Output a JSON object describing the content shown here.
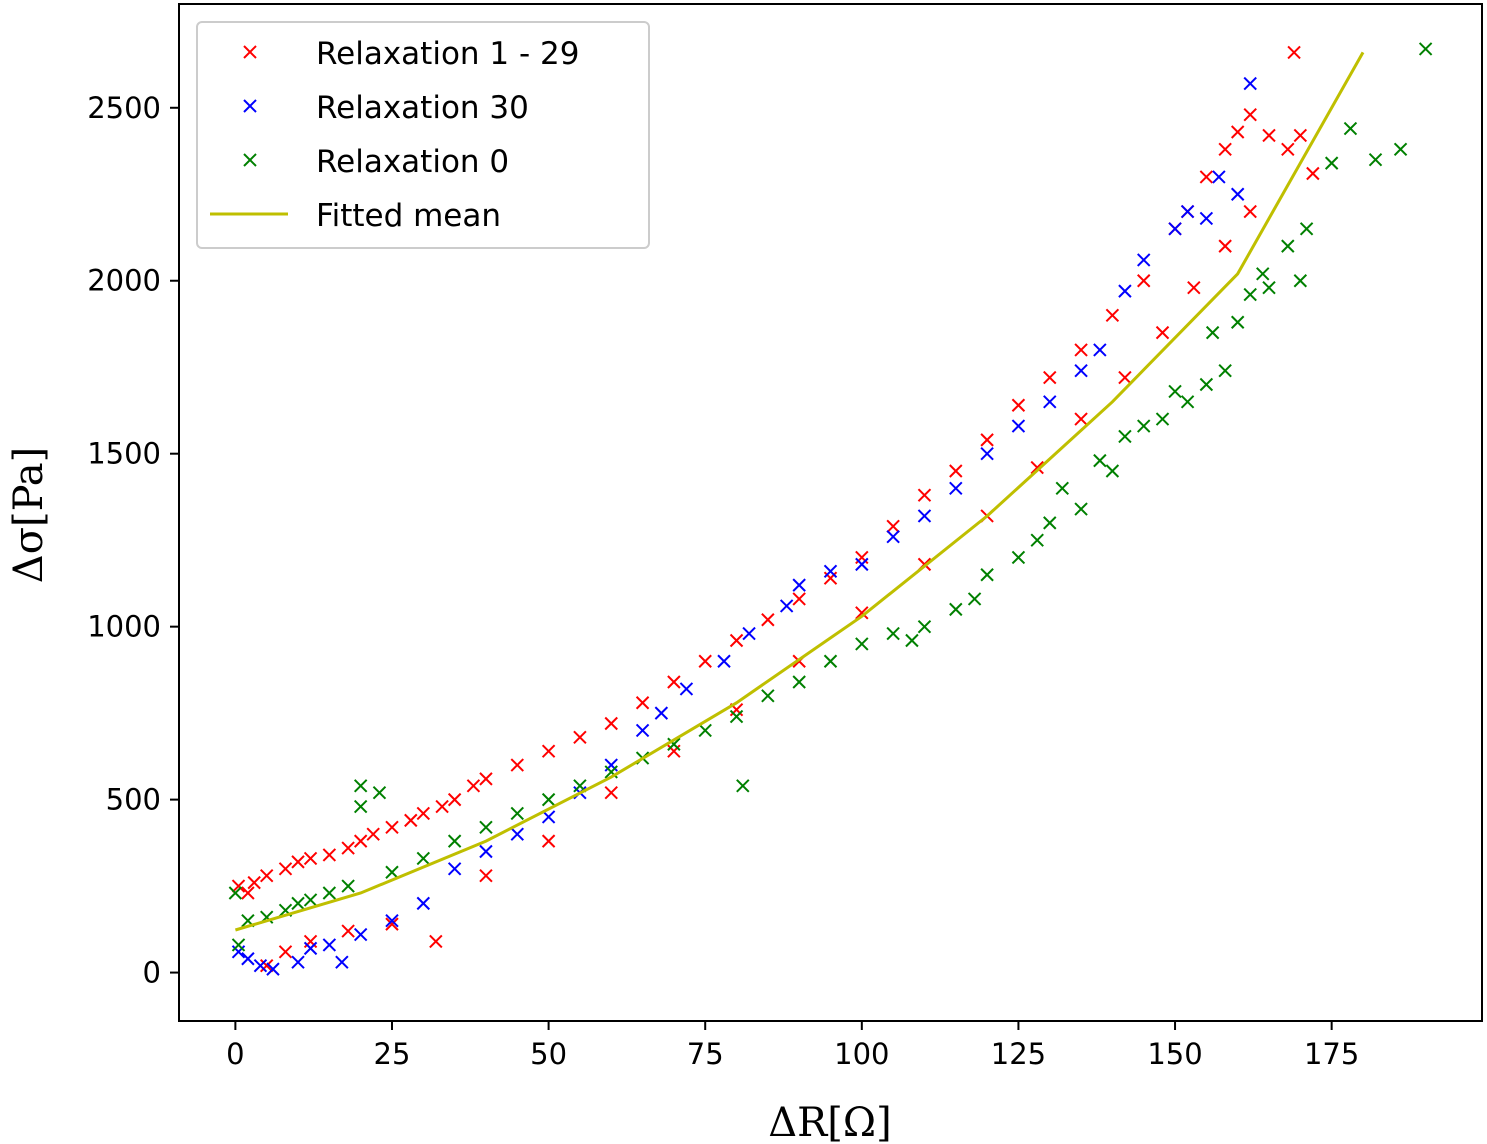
{
  "chart_data": {
    "type": "scatter",
    "xlabel": "ΔR[Ω]",
    "ylabel": "Δσ[Pa]",
    "xlim": [
      -9,
      199
    ],
    "ylim": [
      -140,
      2800
    ],
    "x_ticks": [
      0,
      25,
      50,
      75,
      100,
      125,
      150,
      175
    ],
    "y_ticks": [
      0,
      500,
      1000,
      1500,
      2000,
      2500
    ],
    "grid": false,
    "legend_position": "top-left",
    "series": [
      {
        "name": "Relaxation 1 - 29",
        "marker": "x",
        "color": "#ff0000",
        "trend": "dense cloud following the fitted mean, slightly above it; spread grows with x",
        "points": [
          [
            0.5,
            250
          ],
          [
            2,
            230
          ],
          [
            3,
            260
          ],
          [
            5,
            280
          ],
          [
            8,
            300
          ],
          [
            10,
            320
          ],
          [
            12,
            330
          ],
          [
            15,
            340
          ],
          [
            18,
            360
          ],
          [
            20,
            380
          ],
          [
            22,
            400
          ],
          [
            25,
            420
          ],
          [
            28,
            440
          ],
          [
            30,
            460
          ],
          [
            33,
            480
          ],
          [
            35,
            500
          ],
          [
            38,
            540
          ],
          [
            40,
            560
          ],
          [
            45,
            600
          ],
          [
            50,
            640
          ],
          [
            55,
            680
          ],
          [
            60,
            720
          ],
          [
            65,
            780
          ],
          [
            70,
            840
          ],
          [
            75,
            900
          ],
          [
            80,
            960
          ],
          [
            85,
            1020
          ],
          [
            90,
            1080
          ],
          [
            95,
            1140
          ],
          [
            100,
            1200
          ],
          [
            105,
            1290
          ],
          [
            110,
            1380
          ],
          [
            115,
            1450
          ],
          [
            120,
            1540
          ],
          [
            125,
            1640
          ],
          [
            130,
            1720
          ],
          [
            135,
            1800
          ],
          [
            140,
            1900
          ],
          [
            145,
            2000
          ],
          [
            150,
            2150
          ],
          [
            152,
            2200
          ],
          [
            155,
            2300
          ],
          [
            158,
            2380
          ],
          [
            160,
            2430
          ],
          [
            162,
            2480
          ],
          [
            165,
            2420
          ],
          [
            168,
            2380
          ],
          [
            170,
            2420
          ],
          [
            172,
            2310
          ],
          [
            169,
            2660
          ],
          [
            5,
            20
          ],
          [
            8,
            60
          ],
          [
            12,
            90
          ],
          [
            18,
            120
          ],
          [
            25,
            140
          ],
          [
            32,
            90
          ],
          [
            40,
            280
          ],
          [
            50,
            380
          ],
          [
            60,
            520
          ],
          [
            70,
            640
          ],
          [
            80,
            760
          ],
          [
            90,
            900
          ],
          [
            100,
            1040
          ],
          [
            110,
            1180
          ],
          [
            120,
            1320
          ],
          [
            128,
            1460
          ],
          [
            135,
            1600
          ],
          [
            142,
            1720
          ],
          [
            148,
            1850
          ],
          [
            153,
            1980
          ],
          [
            158,
            2100
          ],
          [
            162,
            2200
          ]
        ]
      },
      {
        "name": "Relaxation 30",
        "marker": "x",
        "color": "#0000ff",
        "trend": "sparser points mixed within the red cloud",
        "points": [
          [
            0.5,
            60
          ],
          [
            2,
            40
          ],
          [
            4,
            20
          ],
          [
            6,
            10
          ],
          [
            10,
            30
          ],
          [
            12,
            70
          ],
          [
            15,
            80
          ],
          [
            17,
            30
          ],
          [
            20,
            110
          ],
          [
            25,
            150
          ],
          [
            30,
            200
          ],
          [
            35,
            300
          ],
          [
            40,
            350
          ],
          [
            45,
            400
          ],
          [
            50,
            450
          ],
          [
            55,
            520
          ],
          [
            60,
            600
          ],
          [
            65,
            700
          ],
          [
            68,
            750
          ],
          [
            72,
            820
          ],
          [
            78,
            900
          ],
          [
            82,
            980
          ],
          [
            88,
            1060
          ],
          [
            90,
            1120
          ],
          [
            95,
            1160
          ],
          [
            100,
            1180
          ],
          [
            105,
            1260
          ],
          [
            110,
            1320
          ],
          [
            115,
            1400
          ],
          [
            120,
            1500
          ],
          [
            125,
            1580
          ],
          [
            130,
            1650
          ],
          [
            135,
            1740
          ],
          [
            138,
            1800
          ],
          [
            142,
            1970
          ],
          [
            145,
            2060
          ],
          [
            150,
            2150
          ],
          [
            152,
            2200
          ],
          [
            155,
            2180
          ],
          [
            157,
            2300
          ],
          [
            160,
            2250
          ],
          [
            162,
            2570
          ]
        ]
      },
      {
        "name": "Relaxation 0",
        "marker": "x",
        "color": "#008000",
        "trend": "dense band just below the fitted mean; diverges downward beyond x≈110",
        "points": [
          [
            0,
            230
          ],
          [
            0.5,
            80
          ],
          [
            2,
            150
          ],
          [
            5,
            160
          ],
          [
            8,
            180
          ],
          [
            10,
            200
          ],
          [
            12,
            210
          ],
          [
            15,
            230
          ],
          [
            18,
            250
          ],
          [
            20,
            540
          ],
          [
            20,
            480
          ],
          [
            23,
            520
          ],
          [
            25,
            290
          ],
          [
            30,
            330
          ],
          [
            35,
            380
          ],
          [
            40,
            420
          ],
          [
            45,
            460
          ],
          [
            50,
            500
          ],
          [
            55,
            540
          ],
          [
            60,
            580
          ],
          [
            65,
            620
          ],
          [
            70,
            660
          ],
          [
            75,
            700
          ],
          [
            80,
            740
          ],
          [
            81,
            540
          ],
          [
            85,
            800
          ],
          [
            90,
            840
          ],
          [
            95,
            900
          ],
          [
            100,
            950
          ],
          [
            105,
            980
          ],
          [
            108,
            960
          ],
          [
            110,
            1000
          ],
          [
            115,
            1050
          ],
          [
            118,
            1080
          ],
          [
            120,
            1150
          ],
          [
            125,
            1200
          ],
          [
            128,
            1250
          ],
          [
            130,
            1300
          ],
          [
            132,
            1400
          ],
          [
            135,
            1340
          ],
          [
            138,
            1480
          ],
          [
            140,
            1450
          ],
          [
            142,
            1550
          ],
          [
            145,
            1580
          ],
          [
            148,
            1600
          ],
          [
            150,
            1680
          ],
          [
            152,
            1650
          ],
          [
            155,
            1700
          ],
          [
            156,
            1850
          ],
          [
            158,
            1740
          ],
          [
            160,
            1880
          ],
          [
            162,
            1960
          ],
          [
            164,
            2020
          ],
          [
            165,
            1980
          ],
          [
            168,
            2100
          ],
          [
            170,
            2000
          ],
          [
            171,
            2150
          ],
          [
            175,
            2340
          ],
          [
            178,
            2440
          ],
          [
            182,
            2350
          ],
          [
            186,
            2380
          ],
          [
            190,
            2670
          ]
        ]
      }
    ],
    "fitted_mean": {
      "name": "Fitted mean",
      "color": "#bfbf00",
      "x": [
        0,
        20,
        40,
        60,
        80,
        100,
        120,
        140,
        160,
        180
      ],
      "y": [
        123,
        230,
        380,
        565,
        780,
        1030,
        1320,
        1650,
        2020,
        2660
      ]
    }
  }
}
